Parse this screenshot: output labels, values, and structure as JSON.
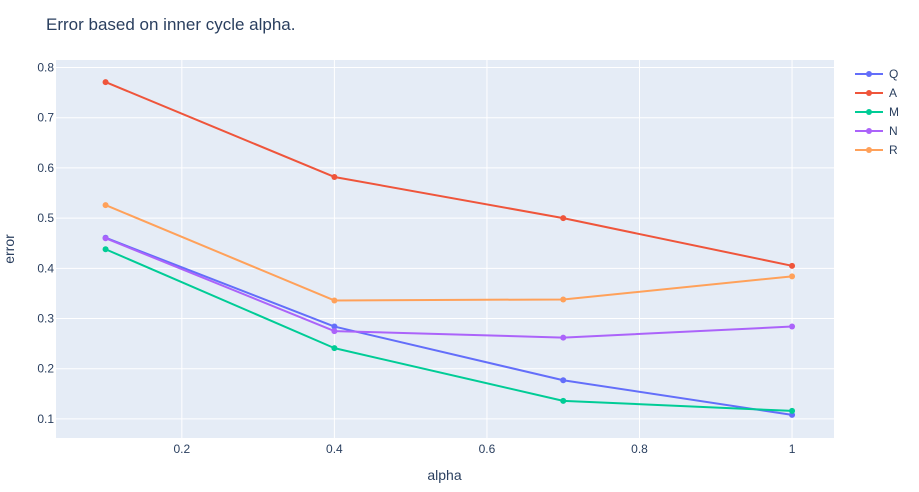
{
  "chart_data": {
    "type": "line",
    "title": "Error based on inner cycle alpha.",
    "xlabel": "alpha",
    "ylabel": "error",
    "x": [
      0.1,
      0.4,
      0.7,
      1.0
    ],
    "xlim": [
      0.035,
      1.055
    ],
    "ylim": [
      0.062,
      0.815
    ],
    "xticks": [
      0.2,
      0.4,
      0.6,
      0.8,
      1.0
    ],
    "xtick_labels": [
      "0.2",
      "0.4",
      "0.6",
      "0.8",
      "1"
    ],
    "yticks": [
      0.1,
      0.2,
      0.3,
      0.4,
      0.5,
      0.6,
      0.7,
      0.8
    ],
    "ytick_labels": [
      "0.1",
      "0.2",
      "0.3",
      "0.4",
      "0.5",
      "0.6",
      "0.7",
      "0.8"
    ],
    "grid": true,
    "legend_position": "top-right",
    "series": [
      {
        "name": "Q",
        "color": "#636efa",
        "values": [
          0.461,
          0.284,
          0.177,
          0.108
        ]
      },
      {
        "name": "A",
        "color": "#ef553b",
        "values": [
          0.771,
          0.582,
          0.5,
          0.405
        ]
      },
      {
        "name": "M",
        "color": "#00cc96",
        "values": [
          0.438,
          0.241,
          0.136,
          0.116
        ]
      },
      {
        "name": "N",
        "color": "#ab63fa",
        "values": [
          0.46,
          0.275,
          0.262,
          0.284
        ]
      },
      {
        "name": "R",
        "color": "#ffa15a",
        "values": [
          0.526,
          0.336,
          0.338,
          0.384
        ]
      }
    ]
  }
}
